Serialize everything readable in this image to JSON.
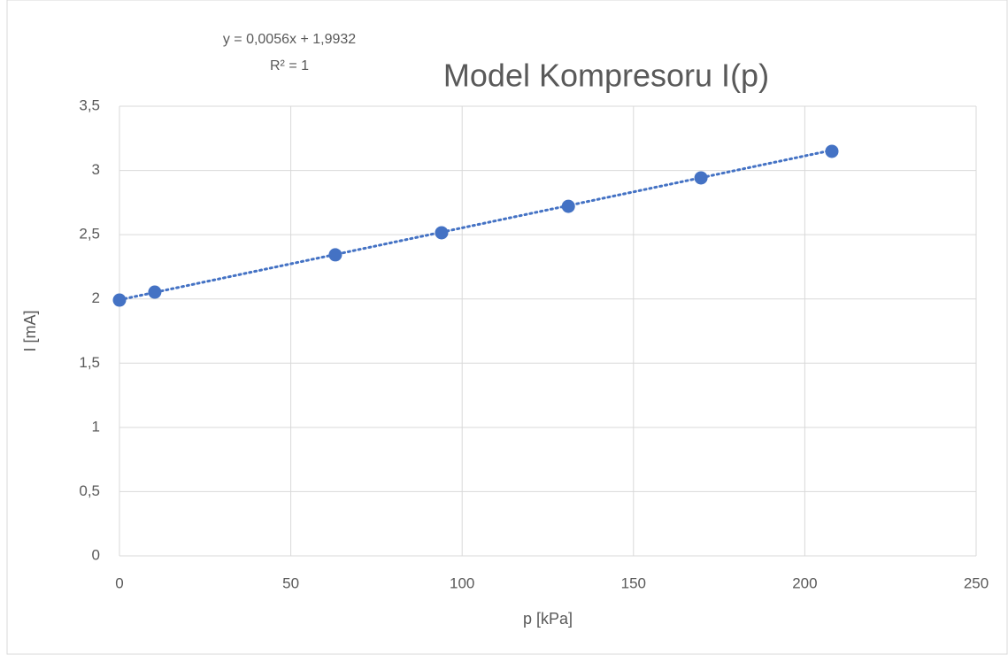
{
  "chart_data": {
    "type": "scatter",
    "title": "Model Kompresoru I(p)",
    "x_label": "p [kPa]",
    "y_label": "I [mA]",
    "series": [
      {
        "name": "I(p)",
        "color": "#4472c4",
        "x": [
          0,
          10.3,
          63,
          94,
          131,
          169.7,
          207.9
        ],
        "values": [
          1.991,
          2.053,
          2.343,
          2.515,
          2.721,
          2.942,
          3.149
        ]
      }
    ],
    "trendline": {
      "slope": 0.0056,
      "intercept": 1.9932,
      "equation": "y = 0,0056x + 1,9932",
      "r2_label": "R² = 1",
      "color": "#4472c4"
    },
    "xlim": [
      0,
      250
    ],
    "xticks": [
      0,
      50,
      100,
      150,
      200,
      250
    ],
    "ylim": [
      0,
      3.5
    ],
    "yticks": [
      0,
      {
        "value": 0.5,
        "label": "0,5"
      },
      1,
      {
        "value": 1.5,
        "label": "1,5"
      },
      2,
      {
        "value": 2.5,
        "label": "2,5"
      },
      3,
      {
        "value": 3.5,
        "label": "3,5"
      }
    ],
    "grid": true
  }
}
